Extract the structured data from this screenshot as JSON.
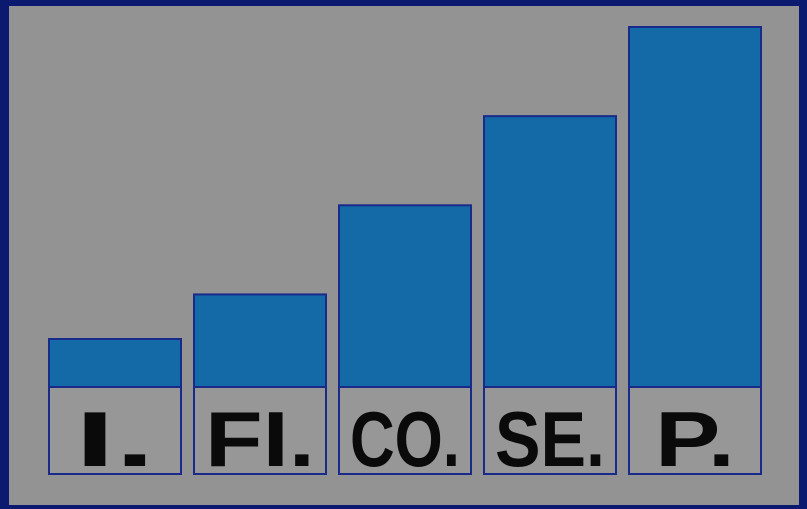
{
  "chart_data": {
    "type": "bar",
    "categories": [
      "I.",
      "FI.",
      "CO.",
      "SE.",
      "P."
    ],
    "values": [
      1,
      2,
      4,
      6,
      8
    ],
    "ylim": [
      0,
      8
    ],
    "grid": false,
    "legend": "none"
  },
  "colors": {
    "background": "#0b1a6e",
    "panel": "#939393",
    "bar_fill": "#146aa6",
    "bar_border": "#1a2a8a",
    "label_fill": "#979797",
    "label_text": "#0a0a0a"
  }
}
